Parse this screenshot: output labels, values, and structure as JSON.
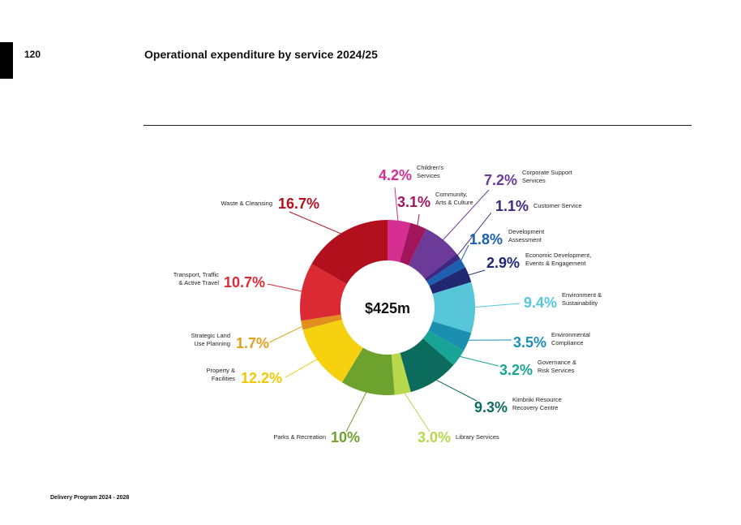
{
  "page": {
    "number": "120",
    "title": "Operational expenditure by service 2024/25",
    "footer": "Delivery Program 2024 - 2028"
  },
  "chart_data": {
    "type": "pie",
    "style": "donut",
    "title": "Operational expenditure by service 2024/25",
    "center_label": "$425m",
    "slices": [
      {
        "label": "Children's Services",
        "value": 4.2,
        "display": "4.2%",
        "color": "#d42f91",
        "label_color": "#d42f91"
      },
      {
        "label": "Community, Arts & Culture",
        "value": 3.1,
        "display": "3.1%",
        "color": "#a0155c",
        "label_color": "#a0155c"
      },
      {
        "label": "Corporate Support Services",
        "value": 7.2,
        "display": "7.2%",
        "color": "#6c3a99",
        "label_color": "#6c3a99"
      },
      {
        "label": "Customer Service",
        "value": 1.1,
        "display": "1.1%",
        "color": "#3d2a80",
        "label_color": "#3d2a80"
      },
      {
        "label": "Development Assessment",
        "value": 1.8,
        "display": "1.8%",
        "color": "#1d5fb0",
        "label_color": "#1d5fb0"
      },
      {
        "label": "Economic Development, Events & Engagement",
        "value": 2.9,
        "display": "2.9%",
        "color": "#1f2870",
        "label_color": "#1f2870"
      },
      {
        "label": "Environment & Sustainability",
        "value": 9.4,
        "display": "9.4%",
        "color": "#56c6d8",
        "label_color": "#56c6d8"
      },
      {
        "label": "Environmental Compliance",
        "value": 3.5,
        "display": "3.5%",
        "color": "#1a8fb0",
        "label_color": "#1a8fb0"
      },
      {
        "label": "Governance & Risk Services",
        "value": 3.2,
        "display": "3.2%",
        "color": "#18a596",
        "label_color": "#18a596"
      },
      {
        "label": "Kimbriki Resource Recovery Centre",
        "value": 9.3,
        "display": "9.3%",
        "color": "#0b6b5c",
        "label_color": "#0b6b5c"
      },
      {
        "label": "Library Services",
        "value": 3.0,
        "display": "3.0%",
        "color": "#b6d84a",
        "label_color": "#b6d84a"
      },
      {
        "label": "Parks & Recreation",
        "value": 10,
        "display": "10%",
        "color": "#6ea22e",
        "label_color": "#6ea22e"
      },
      {
        "label": "Property & Facilities",
        "value": 12.2,
        "display": "12.2%",
        "color": "#f6d10f",
        "label_color": "#f0c808"
      },
      {
        "label": "Strategic Land Use Planning",
        "value": 1.7,
        "display": "1.7%",
        "color": "#e18f1f",
        "label_color": "#e0a21c"
      },
      {
        "label": "Transport, Traffic & Active Travel",
        "value": 10.7,
        "display": "10.7%",
        "color": "#dc2a34",
        "label_color": "#dc2a34"
      },
      {
        "label": "Waste & Cleansing",
        "value": 16.7,
        "display": "16.7%",
        "color": "#b3101e",
        "label_color": "#b3101e"
      }
    ]
  }
}
